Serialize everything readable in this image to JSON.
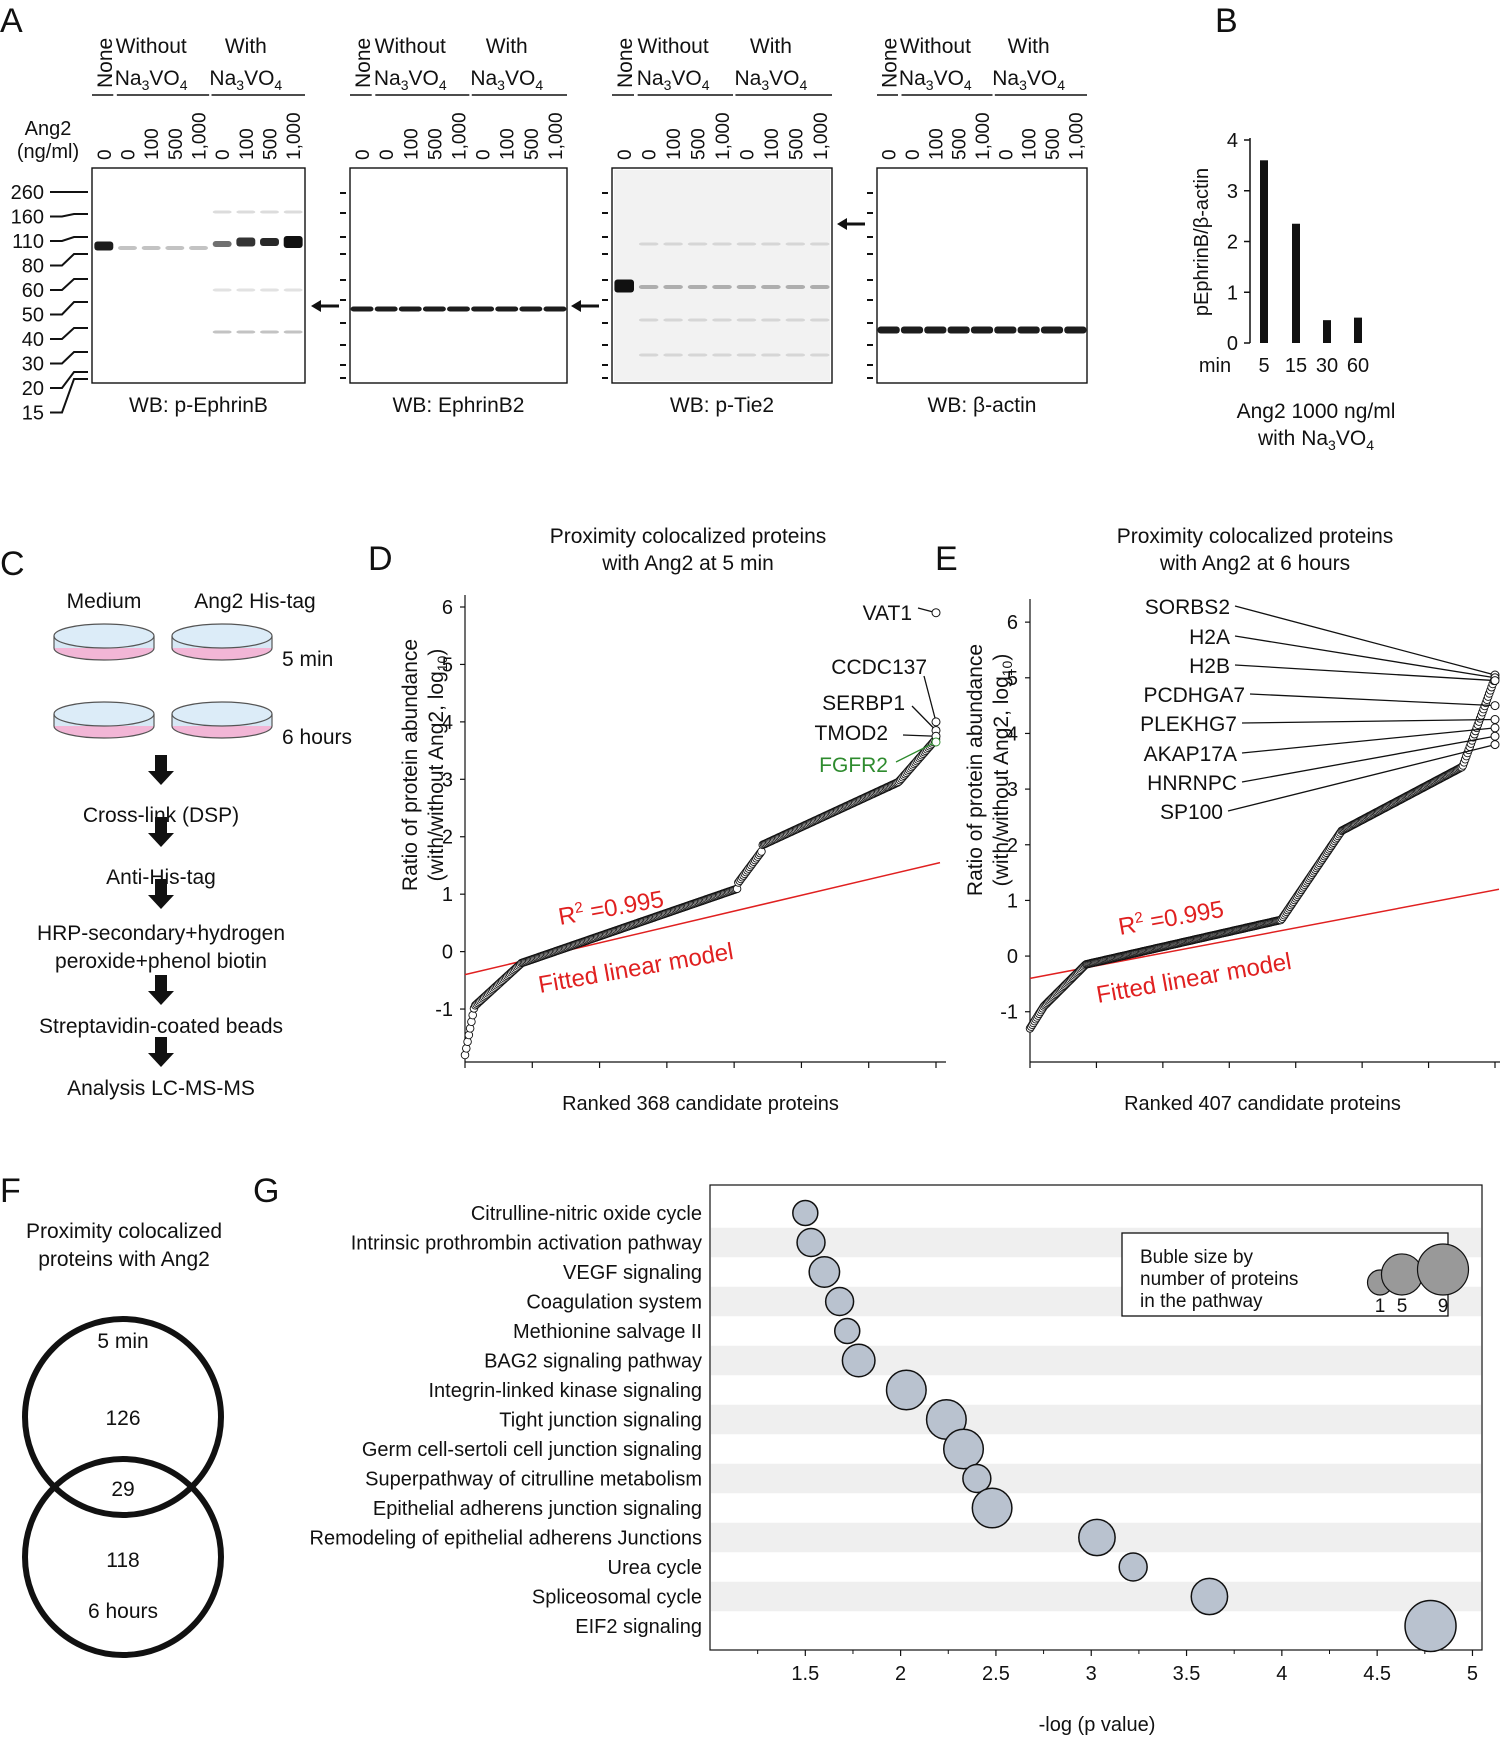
{
  "panels": {
    "A": "A",
    "B": "B",
    "C": "C",
    "D": "D",
    "E": "E",
    "F": "F",
    "G": "G"
  },
  "panelA": {
    "group_none": "None",
    "group_without_line1": "Without",
    "group_with_line1": "With",
    "vanadate": "Na",
    "vanadate_sub3": "3",
    "vanadate_vo": "VO",
    "vanadate_sub4": "4",
    "dose_label_line1": "Ang2",
    "dose_label_line2": "(ng/ml)",
    "doses": [
      "0",
      "0",
      "100",
      "500",
      "1,000",
      "0",
      "100",
      "500",
      "1,000"
    ],
    "mw_markers": [
      "260",
      "160",
      "110",
      "80",
      "60",
      "50",
      "40",
      "30",
      "20",
      "15"
    ],
    "blots": [
      {
        "caption": "WB: p-EphrinB"
      },
      {
        "caption": "WB: EphrinB2"
      },
      {
        "caption": "WB: p-Tie2"
      },
      {
        "caption": "WB: β-actin"
      }
    ]
  },
  "chart_data": [
    {
      "id": "B",
      "type": "bar",
      "categories": [
        "5",
        "15",
        "30",
        "60"
      ],
      "values": [
        3.6,
        2.35,
        0.45,
        0.5
      ],
      "ylabel": "pEphrinB/β-actin",
      "yticks": [
        "0",
        "1",
        "2",
        "3",
        "4"
      ],
      "ylim": [
        0,
        4
      ],
      "xprefix": "min",
      "caption_line1": "Ang2 1000 ng/ml",
      "caption_line2": "with Na",
      "caption_sub3": "3",
      "caption_vo": "VO",
      "caption_sub4": "4"
    },
    {
      "id": "D",
      "type": "scatter",
      "title_line1": "Proximity colocalized proteins",
      "title_line2": "with Ang2 at 5 min",
      "ylabel_line1": "Ratio of protein abundance",
      "ylabel_line2": "(with/without Ang2, log",
      "ylabel_sub": "10",
      "ylabel_close": ")",
      "xlabel": "Ranked 368 candidate proteins",
      "yticks": [
        "-1",
        "0",
        "1",
        "2",
        "3",
        "4",
        "5",
        "6"
      ],
      "ylim": [
        -1.8,
        6
      ],
      "n": 368,
      "r2_label": "R",
      "r2_sup": "2",
      "r2_value": " =0.995",
      "fit_label": "Fitted linear model",
      "fit_line": {
        "y_start": -0.4,
        "y_end": 1.55
      },
      "labeled_points": [
        {
          "label": "VAT1",
          "y": 5.9,
          "color": "#111"
        },
        {
          "label": "CCDC137",
          "y": 4.0,
          "color": "#111"
        },
        {
          "label": "SERBP1",
          "y": 3.85,
          "color": "#111"
        },
        {
          "label": "TMOD2",
          "y": 3.75,
          "color": "#111"
        },
        {
          "label": "FGFR2",
          "y": 3.65,
          "color": "#2e8b2e"
        }
      ]
    },
    {
      "id": "E",
      "type": "scatter",
      "title_line1": "Proximity colocalized proteins",
      "title_line2": "with Ang2 at 6 hours",
      "ylabel_line1": "Ratio of protein abundance",
      "ylabel_line2": "(with/without Ang2, log",
      "ylabel_sub": "10",
      "ylabel_close": ")",
      "xlabel": "Ranked 407 candidate proteins",
      "yticks": [
        "-1",
        "0",
        "1",
        "2",
        "3",
        "4",
        "5",
        "6"
      ],
      "ylim": [
        -1.4,
        6.2
      ],
      "n": 407,
      "r2_label": "R",
      "r2_sup": "2",
      "r2_value": " =0.995",
      "fit_label": "Fitted linear model",
      "fit_line": {
        "y_start": -0.4,
        "y_end": 1.2
      },
      "labeled_points": [
        {
          "label": "SORBS2",
          "y": 5.05,
          "color": "#111"
        },
        {
          "label": "H2A",
          "y": 5.0,
          "color": "#111"
        },
        {
          "label": "H2B",
          "y": 4.95,
          "color": "#111"
        },
        {
          "label": "PCDHGA7",
          "y": 4.5,
          "color": "#111"
        },
        {
          "label": "PLEKHG7",
          "y": 4.25,
          "color": "#111"
        },
        {
          "label": "AKAP17A",
          "y": 4.1,
          "color": "#111"
        },
        {
          "label": "HNRNPC",
          "y": 3.95,
          "color": "#111"
        },
        {
          "label": "SP100",
          "y": 3.8,
          "color": "#111"
        }
      ]
    },
    {
      "id": "G",
      "type": "scatter",
      "xlabel": "-log (p value)",
      "xlim": [
        1.0,
        5.05
      ],
      "xticks": [
        "1.5",
        "2",
        "2.5",
        "3",
        "3.5",
        "4",
        "4.5",
        "5"
      ],
      "legend_title": [
        "Buble size by",
        "number of proteins",
        "in the pathway"
      ],
      "legend_sizes": [
        {
          "label": "1",
          "n": 1
        },
        {
          "label": "5",
          "n": 5
        },
        {
          "label": "9",
          "n": 9
        }
      ],
      "points": [
        {
          "pathway": "Citrulline-nitric oxide cycle",
          "x": 1.5,
          "n": 1
        },
        {
          "pathway": "Intrinsic prothrombin activation pathway",
          "x": 1.53,
          "n": 1.5
        },
        {
          "pathway": "VEGF signaling",
          "x": 1.6,
          "n": 2
        },
        {
          "pathway": "Coagulation system",
          "x": 1.68,
          "n": 1.5
        },
        {
          "pathway": "Methionine salvage II",
          "x": 1.72,
          "n": 1
        },
        {
          "pathway": "BAG2 signaling pathway",
          "x": 1.78,
          "n": 2.5
        },
        {
          "pathway": "Integrin-linked kinase signaling",
          "x": 2.03,
          "n": 4.5
        },
        {
          "pathway": "Tight junction signaling",
          "x": 2.24,
          "n": 4.5
        },
        {
          "pathway": "Germ cell-sertoli cell junction signaling",
          "x": 2.33,
          "n": 4.5
        },
        {
          "pathway": "Superpathway of citrulline metabolism",
          "x": 2.4,
          "n": 1.5
        },
        {
          "pathway": "Epithelial adherens junction signaling",
          "x": 2.48,
          "n": 4.5
        },
        {
          "pathway": "Remodeling of epithelial adherens Junctions",
          "x": 3.03,
          "n": 3.5
        },
        {
          "pathway": "Urea cycle",
          "x": 3.22,
          "n": 1.5
        },
        {
          "pathway": "Spliceosomal cycle",
          "x": 3.62,
          "n": 3.5
        },
        {
          "pathway": "EIF2 signaling",
          "x": 4.78,
          "n": 9
        }
      ]
    }
  ],
  "panelC": {
    "medium": "Medium",
    "his_tag": "Ang2 His-tag",
    "time1": "5 min",
    "time2": "6 hours",
    "steps": [
      [
        "Cross-link (DSP)"
      ],
      [
        "Anti-His-tag"
      ],
      [
        "HRP-secondary+hydrogen",
        "peroxide+phenol biotin"
      ],
      [
        "Streptavidin-coated beads"
      ],
      [
        "Analysis LC-MS-MS"
      ]
    ]
  },
  "panelF": {
    "title_line1": "Proximity colocalized",
    "title_line2": "proteins with Ang2",
    "label_top": "5 min",
    "count_top": "126",
    "count_overlap": "29",
    "count_bottom": "118",
    "label_bottom": "6 hours"
  }
}
